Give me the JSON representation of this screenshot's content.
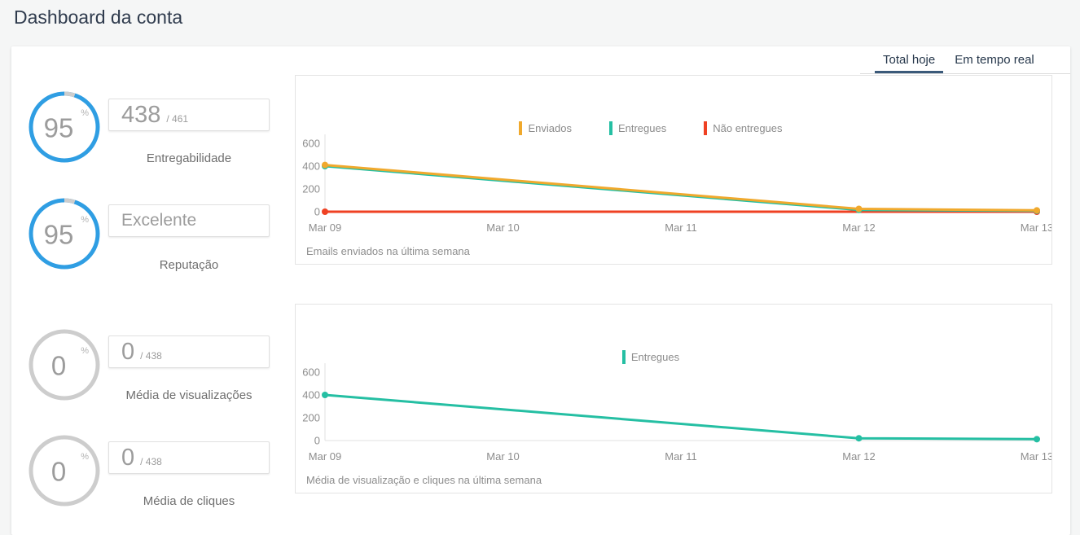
{
  "page": {
    "title": "Dashboard da conta"
  },
  "tabs": {
    "items": [
      {
        "label": "Total hoje",
        "active": true
      },
      {
        "label": "Em tempo real",
        "active": false
      }
    ]
  },
  "colors": {
    "accent_blue": "#2f9ee3",
    "ring_gray": "#cdcdcd",
    "series_yellow": "#f0a92d",
    "series_teal": "#25bfa3",
    "series_red": "#ef4123",
    "active_tab_underline": "#3b5a7a"
  },
  "metrics": [
    {
      "percent": "95",
      "percent_unit": "%",
      "percent_value": 95,
      "ring_color": "#2f9ee3",
      "value": "438",
      "total": "/ 461",
      "label": "Entregabilidade"
    },
    {
      "percent": "95",
      "percent_unit": "%",
      "percent_value": 95,
      "ring_color": "#2f9ee3",
      "value": "Excelente",
      "total": "",
      "label": "Reputação"
    },
    {
      "percent": "0",
      "percent_unit": "%",
      "percent_value": 0,
      "ring_color": "#cdcdcd",
      "value": "0",
      "total": "/ 438",
      "label": "Média de visualizações"
    },
    {
      "percent": "0",
      "percent_unit": "%",
      "percent_value": 0,
      "ring_color": "#cdcdcd",
      "value": "0",
      "total": "/ 438",
      "label": "Média de cliques"
    }
  ],
  "chart_data": [
    {
      "type": "line",
      "title": "Emails enviados na última semana",
      "x_labels": [
        "Mar 09",
        "Mar 10",
        "Mar 11",
        "Mar 12",
        "Mar 13"
      ],
      "y_ticks": [
        0,
        200,
        400,
        600
      ],
      "ylim": [
        0,
        600
      ],
      "grid": false,
      "legend_position": "top-center",
      "series": [
        {
          "name": "Enviados",
          "color": "#f0a92d",
          "points": [
            [
              "Mar 09",
              410
            ],
            [
              "Mar 12",
              25
            ],
            [
              "Mar 13",
              12
            ]
          ]
        },
        {
          "name": "Entregues",
          "color": "#25bfa3",
          "points": [
            [
              "Mar 09",
              400
            ],
            [
              "Mar 12",
              16
            ],
            [
              "Mar 13",
              8
            ]
          ]
        },
        {
          "name": "Não entregues",
          "color": "#ef4123",
          "points": [
            [
              "Mar 09",
              0
            ],
            [
              "Mar 13",
              0
            ]
          ]
        }
      ]
    },
    {
      "type": "line",
      "title": "Média de visualização e cliques na última semana",
      "x_labels": [
        "Mar 09",
        "Mar 10",
        "Mar 11",
        "Mar 12",
        "Mar 13"
      ],
      "y_ticks": [
        0,
        200,
        400,
        600
      ],
      "ylim": [
        0,
        600
      ],
      "grid": false,
      "legend_position": "top-center",
      "series": [
        {
          "name": "Entregues",
          "color": "#25bfa3",
          "points": [
            [
              "Mar 09",
              400
            ],
            [
              "Mar 12",
              20
            ],
            [
              "Mar 13",
              12
            ]
          ]
        }
      ]
    }
  ]
}
